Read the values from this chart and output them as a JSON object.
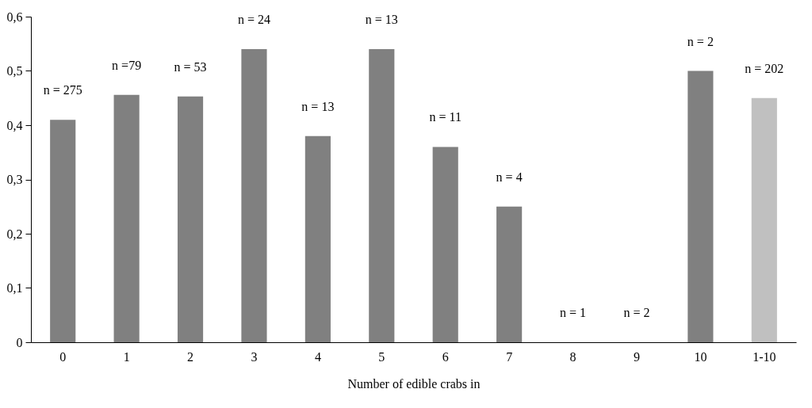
{
  "chart_data": {
    "type": "bar",
    "xlabel": "Number of edible crabs in",
    "categories": [
      "0",
      "1",
      "2",
      "3",
      "4",
      "5",
      "6",
      "7",
      "8",
      "9",
      "10",
      "1-10"
    ],
    "values": [
      0.41,
      0.456,
      0.453,
      0.54,
      0.38,
      0.54,
      0.36,
      0.25,
      0,
      0,
      0.5,
      0.45
    ],
    "colors": [
      "#808080",
      "#808080",
      "#808080",
      "#808080",
      "#808080",
      "#808080",
      "#808080",
      "#808080",
      "#808080",
      "#808080",
      "#808080",
      "#c0c0c0"
    ],
    "annotations": [
      {
        "text": "n = 275",
        "x": "0",
        "y": 0.41
      },
      {
        "text": "n =79",
        "x": "1",
        "y": 0.456
      },
      {
        "text": "n = 53",
        "x": "2",
        "y": 0.453
      },
      {
        "text": "n = 24",
        "x": "3",
        "y": 0.54
      },
      {
        "text": "n = 13",
        "x": "4",
        "y": 0.38
      },
      {
        "text": "n = 13",
        "x": "5",
        "y": 0.54
      },
      {
        "text": "n = 11",
        "x": "6",
        "y": 0.36
      },
      {
        "text": "n = 4",
        "x": "7",
        "y": 0.25
      },
      {
        "text": "n = 1",
        "x": "8",
        "y": 0
      },
      {
        "text": "n = 2",
        "x": "9",
        "y": 0
      },
      {
        "text": "n = 2",
        "x": "10",
        "y": 0.5
      },
      {
        "text": "n = 202",
        "x": "1-10",
        "y": 0.45
      }
    ],
    "ylim": [
      0,
      0.6
    ],
    "yticks": [
      0,
      {
        "value": 0.1,
        "label": "0,1"
      },
      {
        "value": 0.2,
        "label": "0,2"
      },
      {
        "value": 0.3,
        "label": "0,3"
      },
      {
        "value": 0.4,
        "label": "0,4"
      },
      {
        "value": 0.5,
        "label": "0,5"
      },
      {
        "value": 0.6,
        "label": "0,6"
      }
    ],
    "grid": false
  }
}
